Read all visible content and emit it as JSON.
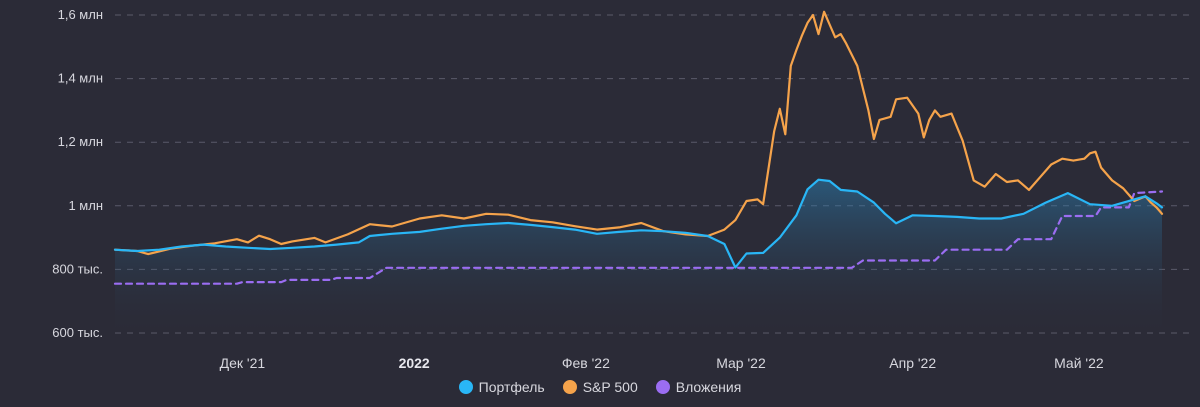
{
  "chart_data": {
    "type": "line",
    "title": "",
    "xlabel": "",
    "ylabel": "",
    "y_min": 560000,
    "y_max": 1620000,
    "y_ticks": [
      {
        "value": 600000,
        "label": "600 тыс."
      },
      {
        "value": 800000,
        "label": "800 тыс."
      },
      {
        "value": 1000000,
        "label": "1 млн"
      },
      {
        "value": 1200000,
        "label": "1,2 млн"
      },
      {
        "value": 1400000,
        "label": "1,4 млн"
      },
      {
        "value": 1600000,
        "label": "1,6 млн"
      }
    ],
    "x_ticks": [
      {
        "date": "2021-12-01",
        "label": "Дек '21",
        "bold": false
      },
      {
        "date": "2022-01-01",
        "label": "2022",
        "bold": true
      },
      {
        "date": "2022-02-01",
        "label": "Фев '22",
        "bold": false
      },
      {
        "date": "2022-03-01",
        "label": "Мар '22",
        "bold": false
      },
      {
        "date": "2022-04-01",
        "label": "Апр '22",
        "bold": false
      },
      {
        "date": "2022-05-01",
        "label": "Май '22",
        "bold": false
      }
    ],
    "grid": true,
    "legend_position": "bottom-center",
    "series": [
      {
        "name": "Портфель",
        "color": "#29b6f6",
        "style": "solid-area",
        "points": [
          [
            "2021-11-08",
            862000
          ],
          [
            "2021-11-12",
            858000
          ],
          [
            "2021-11-16",
            862000
          ],
          [
            "2021-11-20",
            872000
          ],
          [
            "2021-11-24",
            878000
          ],
          [
            "2021-11-28",
            872000
          ],
          [
            "2021-12-02",
            868000
          ],
          [
            "2021-12-06",
            864000
          ],
          [
            "2021-12-10",
            868000
          ],
          [
            "2021-12-14",
            872000
          ],
          [
            "2021-12-18",
            878000
          ],
          [
            "2021-12-22",
            885000
          ],
          [
            "2021-12-24",
            905000
          ],
          [
            "2021-12-28",
            912000
          ],
          [
            "2022-01-02",
            918000
          ],
          [
            "2022-01-06",
            928000
          ],
          [
            "2022-01-10",
            937000
          ],
          [
            "2022-01-14",
            942000
          ],
          [
            "2022-01-18",
            946000
          ],
          [
            "2022-01-22",
            940000
          ],
          [
            "2022-01-26",
            933000
          ],
          [
            "2022-01-30",
            925000
          ],
          [
            "2022-02-03",
            912000
          ],
          [
            "2022-02-07",
            918000
          ],
          [
            "2022-02-11",
            923000
          ],
          [
            "2022-02-15",
            920000
          ],
          [
            "2022-02-19",
            915000
          ],
          [
            "2022-02-23",
            905000
          ],
          [
            "2022-02-26",
            880000
          ],
          [
            "2022-02-28",
            806000
          ],
          [
            "2022-03-02",
            850000
          ],
          [
            "2022-03-05",
            852000
          ],
          [
            "2022-03-08",
            900000
          ],
          [
            "2022-03-11",
            970000
          ],
          [
            "2022-03-13",
            1052000
          ],
          [
            "2022-03-15",
            1082000
          ],
          [
            "2022-03-17",
            1078000
          ],
          [
            "2022-03-19",
            1050000
          ],
          [
            "2022-03-22",
            1045000
          ],
          [
            "2022-03-25",
            1010000
          ],
          [
            "2022-03-27",
            975000
          ],
          [
            "2022-03-29",
            945000
          ],
          [
            "2022-04-01",
            970000
          ],
          [
            "2022-04-05",
            968000
          ],
          [
            "2022-04-09",
            965000
          ],
          [
            "2022-04-13",
            960000
          ],
          [
            "2022-04-17",
            960000
          ],
          [
            "2022-04-21",
            975000
          ],
          [
            "2022-04-25",
            1010000
          ],
          [
            "2022-04-29",
            1040000
          ],
          [
            "2022-05-03",
            1005000
          ],
          [
            "2022-05-07",
            1000000
          ],
          [
            "2022-05-11",
            1020000
          ],
          [
            "2022-05-13",
            1030000
          ],
          [
            "2022-05-15",
            1008000
          ],
          [
            "2022-05-16",
            995000
          ]
        ]
      },
      {
        "name": "S&P 500",
        "color": "#f5a34b",
        "style": "solid",
        "points": [
          [
            "2021-11-08",
            862000
          ],
          [
            "2021-11-12",
            858000
          ],
          [
            "2021-11-14",
            848000
          ],
          [
            "2021-11-18",
            865000
          ],
          [
            "2021-11-22",
            875000
          ],
          [
            "2021-11-26",
            882000
          ],
          [
            "2021-11-30",
            895000
          ],
          [
            "2021-12-02",
            885000
          ],
          [
            "2021-12-04",
            906000
          ],
          [
            "2021-12-06",
            895000
          ],
          [
            "2021-12-08",
            880000
          ],
          [
            "2021-12-10",
            888000
          ],
          [
            "2021-12-14",
            899000
          ],
          [
            "2021-12-16",
            885000
          ],
          [
            "2021-12-20",
            910000
          ],
          [
            "2021-12-24",
            942000
          ],
          [
            "2021-12-28",
            935000
          ],
          [
            "2022-01-02",
            960000
          ],
          [
            "2022-01-06",
            970000
          ],
          [
            "2022-01-10",
            960000
          ],
          [
            "2022-01-14",
            975000
          ],
          [
            "2022-01-18",
            972000
          ],
          [
            "2022-01-22",
            955000
          ],
          [
            "2022-01-26",
            948000
          ],
          [
            "2022-01-30",
            936000
          ],
          [
            "2022-02-03",
            925000
          ],
          [
            "2022-02-07",
            932000
          ],
          [
            "2022-02-11",
            946000
          ],
          [
            "2022-02-15",
            920000
          ],
          [
            "2022-02-19",
            910000
          ],
          [
            "2022-02-23",
            905000
          ],
          [
            "2022-02-26",
            925000
          ],
          [
            "2022-02-28",
            955000
          ],
          [
            "2022-03-02",
            1015000
          ],
          [
            "2022-03-04",
            1020000
          ],
          [
            "2022-03-05",
            1005000
          ],
          [
            "2022-03-07",
            1235000
          ],
          [
            "2022-03-08",
            1305000
          ],
          [
            "2022-03-09",
            1225000
          ],
          [
            "2022-03-10",
            1440000
          ],
          [
            "2022-03-11",
            1490000
          ],
          [
            "2022-03-12",
            1535000
          ],
          [
            "2022-03-13",
            1575000
          ],
          [
            "2022-03-14",
            1600000
          ],
          [
            "2022-03-15",
            1540000
          ],
          [
            "2022-03-16",
            1610000
          ],
          [
            "2022-03-17",
            1570000
          ],
          [
            "2022-03-18",
            1530000
          ],
          [
            "2022-03-19",
            1540000
          ],
          [
            "2022-03-20",
            1510000
          ],
          [
            "2022-03-22",
            1440000
          ],
          [
            "2022-03-24",
            1300000
          ],
          [
            "2022-03-25",
            1210000
          ],
          [
            "2022-03-26",
            1270000
          ],
          [
            "2022-03-28",
            1280000
          ],
          [
            "2022-03-29",
            1335000
          ],
          [
            "2022-03-31",
            1340000
          ],
          [
            "2022-04-02",
            1290000
          ],
          [
            "2022-04-03",
            1215000
          ],
          [
            "2022-04-04",
            1270000
          ],
          [
            "2022-04-05",
            1300000
          ],
          [
            "2022-04-06",
            1280000
          ],
          [
            "2022-04-08",
            1290000
          ],
          [
            "2022-04-10",
            1205000
          ],
          [
            "2022-04-12",
            1080000
          ],
          [
            "2022-04-14",
            1060000
          ],
          [
            "2022-04-16",
            1100000
          ],
          [
            "2022-04-18",
            1075000
          ],
          [
            "2022-04-20",
            1080000
          ],
          [
            "2022-04-22",
            1050000
          ],
          [
            "2022-04-24",
            1090000
          ],
          [
            "2022-04-26",
            1130000
          ],
          [
            "2022-04-28",
            1148000
          ],
          [
            "2022-04-30",
            1142000
          ],
          [
            "2022-05-02",
            1148000
          ],
          [
            "2022-05-03",
            1165000
          ],
          [
            "2022-05-04",
            1170000
          ],
          [
            "2022-05-05",
            1120000
          ],
          [
            "2022-05-07",
            1080000
          ],
          [
            "2022-05-09",
            1055000
          ],
          [
            "2022-05-11",
            1015000
          ],
          [
            "2022-05-13",
            1030000
          ],
          [
            "2022-05-14",
            1010000
          ],
          [
            "2022-05-15",
            995000
          ],
          [
            "2022-05-16",
            975000
          ]
        ]
      },
      {
        "name": "Вложения",
        "color": "#9b6df2",
        "style": "dashed",
        "points": [
          [
            "2021-11-08",
            755000
          ],
          [
            "2021-11-30",
            755000
          ],
          [
            "2021-12-01",
            760000
          ],
          [
            "2021-12-08",
            760000
          ],
          [
            "2021-12-09",
            767000
          ],
          [
            "2021-12-17",
            767000
          ],
          [
            "2021-12-18",
            773000
          ],
          [
            "2021-12-24",
            773000
          ],
          [
            "2021-12-27",
            805000
          ],
          [
            "2022-03-21",
            805000
          ],
          [
            "2022-03-23",
            828000
          ],
          [
            "2022-04-05",
            828000
          ],
          [
            "2022-04-07",
            862000
          ],
          [
            "2022-04-18",
            862000
          ],
          [
            "2022-04-20",
            895000
          ],
          [
            "2022-04-26",
            895000
          ],
          [
            "2022-04-28",
            968000
          ],
          [
            "2022-05-04",
            968000
          ],
          [
            "2022-05-05",
            995000
          ],
          [
            "2022-05-10",
            995000
          ],
          [
            "2022-05-11",
            1040000
          ],
          [
            "2022-05-16",
            1045000
          ]
        ]
      }
    ]
  }
}
